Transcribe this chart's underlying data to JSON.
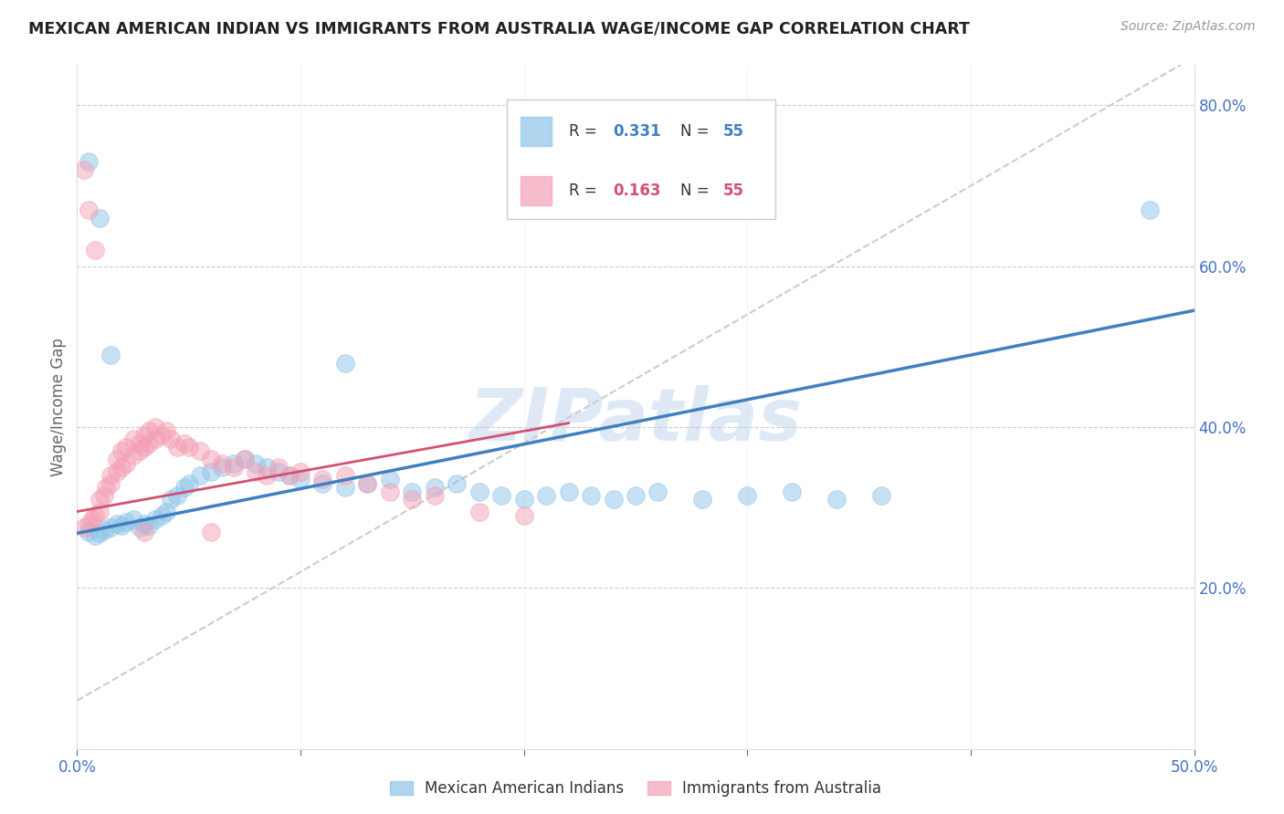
{
  "title": "MEXICAN AMERICAN INDIAN VS IMMIGRANTS FROM AUSTRALIA WAGE/INCOME GAP CORRELATION CHART",
  "source": "Source: ZipAtlas.com",
  "ylabel": "Wage/Income Gap",
  "xlim": [
    0.0,
    0.5
  ],
  "ylim": [
    0.0,
    0.85
  ],
  "color_blue": "#8ec4e8",
  "color_pink": "#f4a0b5",
  "trendline_blue": "#4080c0",
  "trendline_pink": "#d45070",
  "trendline_gray": "#cccccc",
  "watermark": "ZIPatlas",
  "blue_scatter_x": [
    0.005,
    0.008,
    0.01,
    0.012,
    0.015,
    0.018,
    0.02,
    0.022,
    0.025,
    0.028,
    0.03,
    0.032,
    0.035,
    0.038,
    0.04,
    0.042,
    0.045,
    0.048,
    0.05,
    0.055,
    0.06,
    0.065,
    0.07,
    0.075,
    0.08,
    0.085,
    0.09,
    0.095,
    0.1,
    0.11,
    0.12,
    0.13,
    0.14,
    0.15,
    0.16,
    0.17,
    0.18,
    0.19,
    0.2,
    0.21,
    0.22,
    0.23,
    0.24,
    0.25,
    0.26,
    0.28,
    0.3,
    0.32,
    0.34,
    0.36,
    0.005,
    0.01,
    0.015,
    0.48,
    0.12
  ],
  "blue_scatter_y": [
    0.27,
    0.265,
    0.268,
    0.272,
    0.275,
    0.28,
    0.278,
    0.282,
    0.285,
    0.275,
    0.28,
    0.278,
    0.285,
    0.29,
    0.295,
    0.31,
    0.315,
    0.325,
    0.33,
    0.34,
    0.345,
    0.35,
    0.355,
    0.36,
    0.355,
    0.35,
    0.345,
    0.34,
    0.335,
    0.33,
    0.325,
    0.33,
    0.335,
    0.32,
    0.325,
    0.33,
    0.32,
    0.315,
    0.31,
    0.315,
    0.32,
    0.315,
    0.31,
    0.315,
    0.32,
    0.31,
    0.315,
    0.32,
    0.31,
    0.315,
    0.73,
    0.66,
    0.49,
    0.67,
    0.48
  ],
  "pink_scatter_x": [
    0.003,
    0.005,
    0.007,
    0.008,
    0.01,
    0.01,
    0.012,
    0.013,
    0.015,
    0.015,
    0.018,
    0.018,
    0.02,
    0.02,
    0.022,
    0.022,
    0.025,
    0.025,
    0.028,
    0.028,
    0.03,
    0.03,
    0.032,
    0.032,
    0.035,
    0.035,
    0.038,
    0.04,
    0.042,
    0.045,
    0.048,
    0.05,
    0.055,
    0.06,
    0.065,
    0.07,
    0.075,
    0.08,
    0.085,
    0.09,
    0.095,
    0.1,
    0.11,
    0.12,
    0.13,
    0.14,
    0.15,
    0.16,
    0.18,
    0.2,
    0.003,
    0.005,
    0.008,
    0.03,
    0.06
  ],
  "pink_scatter_y": [
    0.275,
    0.28,
    0.285,
    0.29,
    0.295,
    0.31,
    0.315,
    0.325,
    0.33,
    0.34,
    0.345,
    0.36,
    0.35,
    0.37,
    0.355,
    0.375,
    0.365,
    0.385,
    0.37,
    0.38,
    0.375,
    0.39,
    0.38,
    0.395,
    0.385,
    0.4,
    0.39,
    0.395,
    0.385,
    0.375,
    0.38,
    0.375,
    0.37,
    0.36,
    0.355,
    0.35,
    0.36,
    0.345,
    0.34,
    0.35,
    0.34,
    0.345,
    0.335,
    0.34,
    0.33,
    0.32,
    0.31,
    0.315,
    0.295,
    0.29,
    0.72,
    0.67,
    0.62,
    0.27,
    0.27
  ],
  "blue_trend_x": [
    0.0,
    0.5
  ],
  "blue_trend_y": [
    0.268,
    0.545
  ],
  "pink_trend_x": [
    0.0,
    0.22
  ],
  "pink_trend_y": [
    0.295,
    0.405
  ],
  "gray_trend_x": [
    0.0,
    0.5
  ],
  "gray_trend_y": [
    0.06,
    0.86
  ]
}
